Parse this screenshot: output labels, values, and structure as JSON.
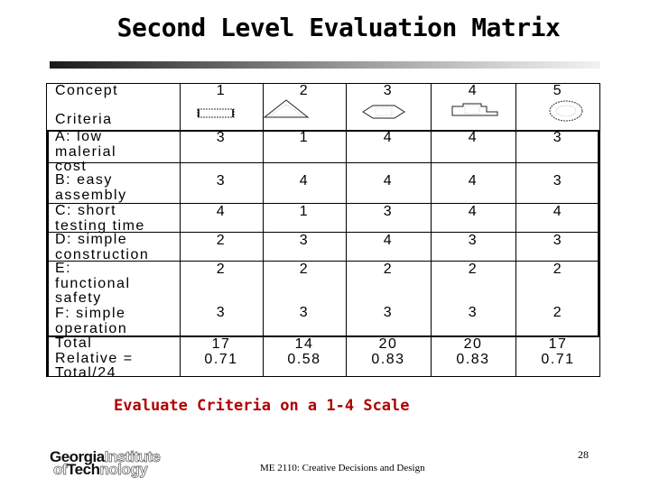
{
  "title": "Second Level Evaluation Matrix",
  "matrix": {
    "concept_label": "Concept",
    "criteria_label": "Criteria",
    "concept_numbers": [
      "1",
      "2",
      "3",
      "4",
      "5"
    ],
    "concept_icons": [
      "rectangle-shape-icon",
      "triangle-shape-icon",
      "hexagon-shape-icon",
      "stepped-shape-icon",
      "circle-shape-icon"
    ],
    "criteria": [
      {
        "lines": [
          "A: low",
          "malerial",
          "cost"
        ],
        "scores": [
          "3",
          "1",
          "4",
          "4",
          "3"
        ]
      },
      {
        "lines": [
          "B: easy",
          "assembly"
        ],
        "scores": [
          "3",
          "4",
          "4",
          "4",
          "3"
        ]
      },
      {
        "lines": [
          "C: short",
          "testing time"
        ],
        "scores": [
          "4",
          "1",
          "3",
          "4",
          "4"
        ]
      },
      {
        "lines": [
          "D: simple",
          "construction"
        ],
        "scores": [
          "2",
          "3",
          "4",
          "3",
          "3"
        ]
      },
      {
        "lines": [
          "E:",
          "functional",
          "safety"
        ],
        "scores": [
          "2",
          "2",
          "2",
          "2",
          "2"
        ]
      },
      {
        "lines": [
          "F: simple",
          "operation"
        ],
        "scores": [
          "3",
          "3",
          "3",
          "3",
          "2"
        ]
      }
    ],
    "total_label": "Total",
    "relative_label_lines": [
      "Relative =",
      "Total/24"
    ],
    "totals": [
      "17",
      "14",
      "20",
      "20",
      "17"
    ],
    "relative": [
      "0.71",
      "0.58",
      "0.83",
      "0.83",
      "0.71"
    ]
  },
  "subtitle": "Evaluate Criteria on a 1-4 Scale",
  "logo": {
    "georgia": "Georgia",
    "institute": "Institute",
    "of": "of",
    "tech": "Tech",
    "nology": "nology"
  },
  "page_number": "28",
  "footer": "ME 2110: Creative Decisions and Design",
  "colors": {
    "subtitle": "#b00000",
    "title_bar_start": "#1a1a1a",
    "title_bar_end": "#f2f2f2"
  }
}
